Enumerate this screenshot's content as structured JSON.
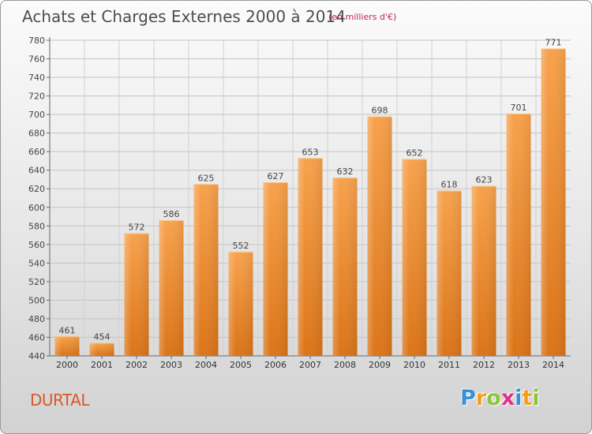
{
  "chart_data": {
    "type": "bar",
    "title": "Achats et Charges Externes 2000 à 2014",
    "subtitle": "(en milliers d'€)",
    "categories": [
      "2000",
      "2001",
      "2002",
      "2003",
      "2004",
      "2005",
      "2006",
      "2007",
      "2008",
      "2009",
      "2010",
      "2011",
      "2012",
      "2013",
      "2014"
    ],
    "values": [
      461,
      454,
      572,
      586,
      625,
      552,
      627,
      653,
      632,
      698,
      652,
      618,
      623,
      701,
      771
    ],
    "ylim": [
      440,
      780
    ],
    "yticks": [
      440,
      460,
      480,
      500,
      520,
      540,
      560,
      580,
      600,
      620,
      640,
      660,
      680,
      700,
      720,
      740,
      760,
      780
    ],
    "grid": true,
    "bar_color": "#f0922e",
    "xlabel": "",
    "ylabel": ""
  },
  "location": "DURTAL",
  "logo": {
    "text": "Proxiti",
    "letters": [
      {
        "ch": "P",
        "color": "#3a8fd6"
      },
      {
        "ch": "r",
        "color": "#f0a020"
      },
      {
        "ch": "o",
        "color": "#8cc43c"
      },
      {
        "ch": "x",
        "color": "#e0308a"
      },
      {
        "ch": "i",
        "color": "#3a8fd6"
      },
      {
        "ch": "t",
        "color": "#f0a020"
      },
      {
        "ch": "i",
        "color": "#8cc43c"
      }
    ]
  }
}
